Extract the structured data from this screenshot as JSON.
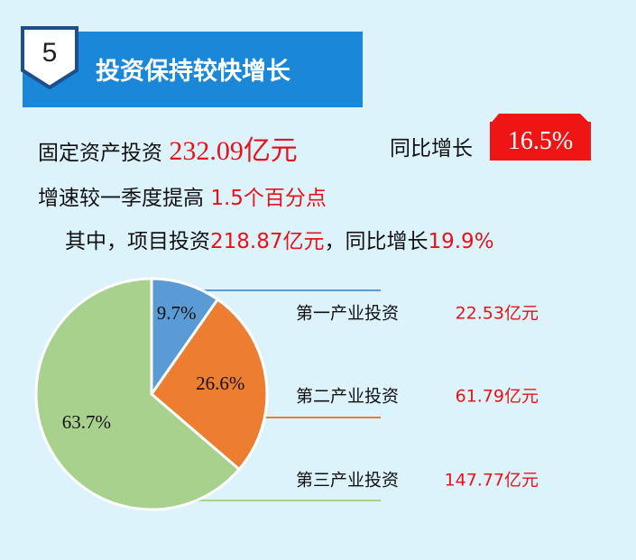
{
  "header": {
    "number": "5",
    "title": "投资保持较快增长"
  },
  "lines": [
    [
      "固定资产投资",
      "232.09亿元",
      "同比增长",
      "16.5%"
    ],
    [
      "增速较一季度提高",
      "1.5个百分点"
    ],
    [
      "其中，项目投资",
      "218.87亿元",
      "，同比增长",
      "19.9%"
    ]
  ],
  "chart_data": {
    "type": "pie",
    "categories": [
      "第一产业投资",
      "第二产业投资",
      "第三产业投资"
    ],
    "values": [
      9.7,
      26.6,
      63.7
    ],
    "value_labels": [
      "9.7%",
      "26.6%",
      "63.7%"
    ],
    "amounts": [
      "22.53亿元",
      "61.79亿元",
      "147.77亿元"
    ],
    "colors": [
      "#5b9bd5",
      "#ed7d31",
      "#a9d18e"
    ]
  }
}
